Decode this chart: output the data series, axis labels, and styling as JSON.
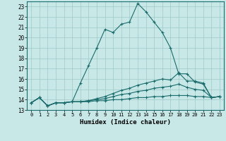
{
  "xlabel": "Humidex (Indice chaleur)",
  "background_color": "#c8e8e8",
  "grid_color": "#a0c8c8",
  "line_color": "#1a6b6b",
  "xlim": [
    -0.5,
    23.5
  ],
  "ylim": [
    13.0,
    23.5
  ],
  "yticks": [
    13,
    14,
    15,
    16,
    17,
    18,
    19,
    20,
    21,
    22,
    23
  ],
  "xticks": [
    0,
    1,
    2,
    3,
    4,
    5,
    6,
    7,
    8,
    9,
    10,
    11,
    12,
    13,
    14,
    15,
    16,
    17,
    18,
    19,
    20,
    21,
    22,
    23
  ],
  "line_max": {
    "x": [
      0,
      1,
      2,
      3,
      4,
      5,
      6,
      7,
      8,
      9,
      10,
      11,
      12,
      13,
      14,
      15,
      16,
      17,
      18,
      19,
      20,
      21,
      22,
      23
    ],
    "y": [
      13.7,
      14.2,
      13.4,
      13.7,
      13.7,
      13.8,
      15.6,
      17.3,
      19.0,
      20.8,
      20.5,
      21.3,
      21.5,
      23.3,
      22.5,
      21.5,
      20.5,
      19.0,
      16.5,
      16.5,
      15.7,
      15.5,
      14.2,
      14.3
    ]
  },
  "line_mid1": {
    "x": [
      0,
      1,
      2,
      3,
      4,
      5,
      6,
      7,
      8,
      9,
      10,
      11,
      12,
      13,
      14,
      15,
      16,
      17,
      18,
      19,
      20,
      21,
      22,
      23
    ],
    "y": [
      13.7,
      14.2,
      13.4,
      13.7,
      13.7,
      13.8,
      13.8,
      13.9,
      14.1,
      14.3,
      14.6,
      14.9,
      15.1,
      15.4,
      15.6,
      15.8,
      16.0,
      15.9,
      16.6,
      15.8,
      15.8,
      15.6,
      14.2,
      14.3
    ]
  },
  "line_mid2": {
    "x": [
      0,
      1,
      2,
      3,
      4,
      5,
      6,
      7,
      8,
      9,
      10,
      11,
      12,
      13,
      14,
      15,
      16,
      17,
      18,
      19,
      20,
      21,
      22,
      23
    ],
    "y": [
      13.7,
      14.2,
      13.4,
      13.7,
      13.7,
      13.8,
      13.8,
      13.9,
      14.0,
      14.1,
      14.3,
      14.5,
      14.6,
      14.8,
      14.9,
      15.1,
      15.2,
      15.3,
      15.5,
      15.2,
      15.0,
      14.9,
      14.2,
      14.3
    ]
  },
  "line_min": {
    "x": [
      0,
      1,
      2,
      3,
      4,
      5,
      6,
      7,
      8,
      9,
      10,
      11,
      12,
      13,
      14,
      15,
      16,
      17,
      18,
      19,
      20,
      21,
      22,
      23
    ],
    "y": [
      13.7,
      14.2,
      13.4,
      13.7,
      13.7,
      13.8,
      13.8,
      13.8,
      13.9,
      13.9,
      14.0,
      14.0,
      14.1,
      14.2,
      14.2,
      14.3,
      14.3,
      14.4,
      14.4,
      14.4,
      14.3,
      14.3,
      14.2,
      14.3
    ]
  }
}
